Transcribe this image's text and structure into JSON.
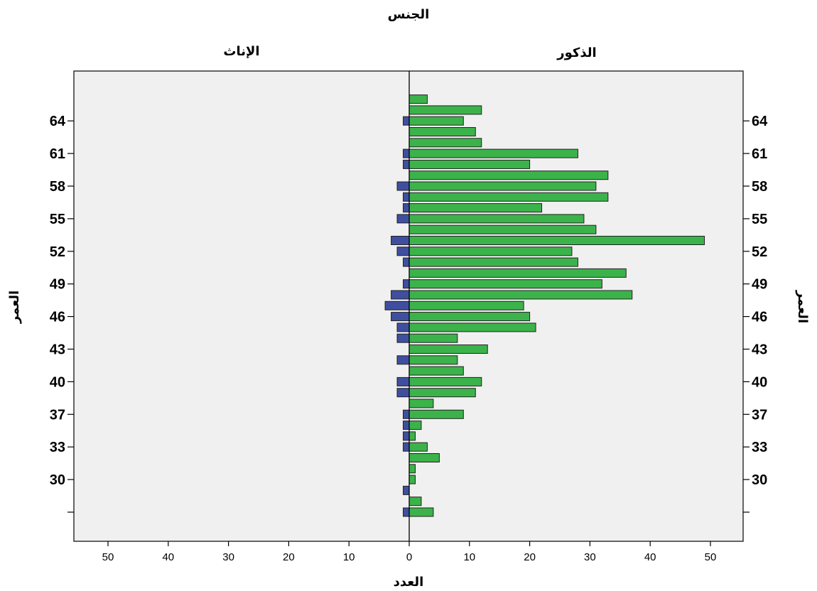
{
  "chart_data": {
    "type": "bar",
    "orientation": "horizontal",
    "subtype": "population-pyramid",
    "title": "الجنس",
    "panels": [
      "الإناث",
      "الذكور"
    ],
    "xlabel": "العدد",
    "ylabel": "العمر",
    "xlim": [
      0,
      50
    ],
    "x_ticks": [
      0,
      10,
      20,
      30,
      40,
      50
    ],
    "y_tick_labels": [
      "64",
      "61",
      "58",
      "55",
      "52",
      "49",
      "46",
      "43",
      "40",
      "37",
      "33",
      "30"
    ],
    "categories": [
      "",
      "",
      "",
      "30",
      "",
      "",
      "33",
      "",
      "",
      "37",
      "",
      "",
      "40",
      "",
      "",
      "43",
      "",
      "",
      "46",
      "",
      "",
      "49",
      "",
      "",
      "52",
      "",
      "",
      "55",
      "",
      "",
      "58",
      "",
      "",
      "61",
      "",
      "",
      "64",
      "",
      ""
    ],
    "series": [
      {
        "name": "الإناث",
        "values": [
          1,
          0,
          1,
          0,
          0,
          0,
          1,
          1,
          1,
          1,
          0,
          2,
          2,
          0,
          2,
          0,
          2,
          2,
          3,
          4,
          3,
          1,
          0,
          1,
          2,
          3,
          0,
          2,
          1,
          1,
          2,
          0,
          1,
          1,
          0,
          0,
          1,
          0,
          0
        ]
      },
      {
        "name": "الذكور",
        "values": [
          4,
          2,
          0,
          1,
          1,
          5,
          3,
          1,
          2,
          9,
          4,
          11,
          12,
          9,
          8,
          13,
          8,
          21,
          20,
          19,
          37,
          32,
          36,
          28,
          27,
          49,
          31,
          29,
          22,
          33,
          31,
          33,
          20,
          28,
          12,
          11,
          9,
          12,
          3
        ]
      }
    ],
    "colors": {
      "female": "#3f4fa0",
      "male": "#3cb34a",
      "plot_bg": "#f0f0f0",
      "edge": "#222222"
    },
    "grid": false
  }
}
